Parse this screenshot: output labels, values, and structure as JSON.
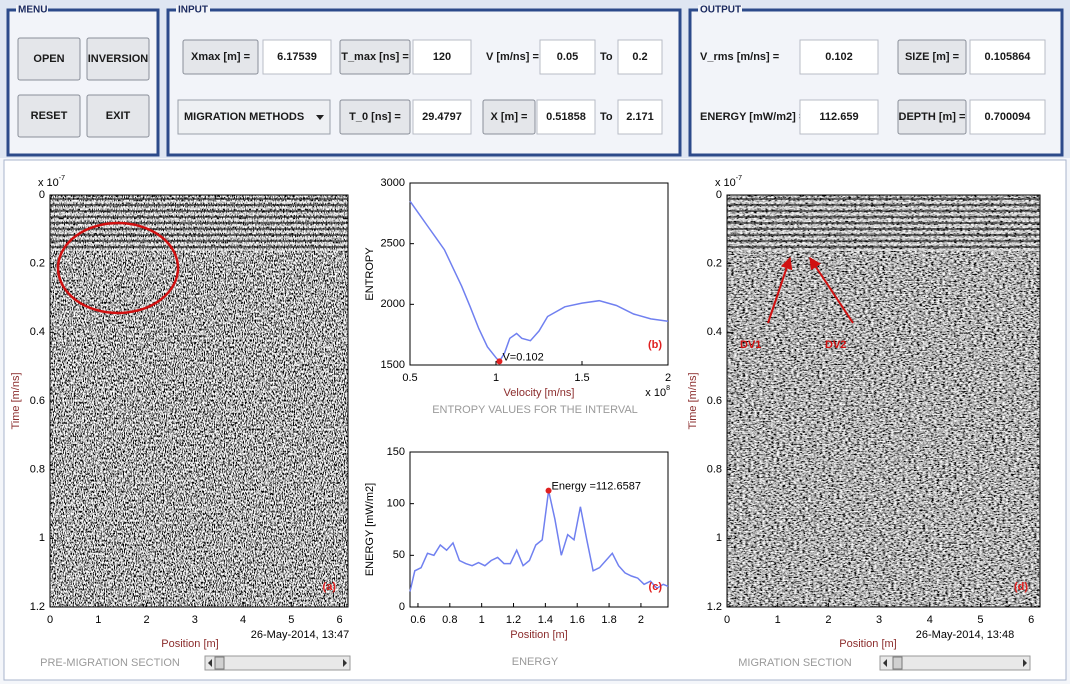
{
  "menu": {
    "title": "MENU",
    "buttons": [
      "OPEN",
      "INVERSION",
      "RESET",
      "EXIT"
    ]
  },
  "input": {
    "title": "INPUT",
    "xmax": {
      "label": "Xmax [m] =",
      "value": 6.17539
    },
    "t_max": {
      "label": "T_max [ns] =",
      "value": 120
    },
    "v": {
      "label": "V [m/ns] =",
      "from": 0.05,
      "to_label": "To",
      "to": 0.2
    },
    "migration_methods": "MIGRATION METHODS",
    "t_0": {
      "label": "T_0 [ns] =",
      "value": 29.4797
    },
    "x": {
      "label": "X [m] =",
      "from": 0.51858,
      "to_label": "To",
      "to": 2.171
    }
  },
  "output": {
    "title": "OUTPUT",
    "v_rms": {
      "label": "V_rms [m/ns] =",
      "value": 0.102
    },
    "size": {
      "label": "SIZE [m] =",
      "value": 0.105864
    },
    "energy": {
      "label": "ENERGY [mW/m2] =",
      "value": 112.659
    },
    "depth": {
      "label": "DEPTH [m] =",
      "value": 0.700094
    }
  },
  "plots": {
    "a": {
      "type": "radargram",
      "title": "PRE-MIGRATION SECTION",
      "panel_label": "(a)",
      "xlabel": "Position [m]",
      "ylabel": "Time [m/ns]",
      "timestamp": "26-May-2014, 13:47",
      "y_multiplier": {
        "base": "x 10",
        "exponent": "-7"
      },
      "xlim": [
        0,
        6.175
      ],
      "ylim": [
        0,
        1.2
      ],
      "y_reversed": true,
      "xticks": [
        0,
        1,
        2,
        3,
        4,
        5,
        6
      ],
      "yticks": [
        0,
        0.2,
        0.4,
        0.6,
        0.8,
        1,
        1.2
      ]
    },
    "b": {
      "type": "line",
      "title": "ENTROPY VALUES FOR THE INTERVAL",
      "panel_label": "(b)",
      "xlabel": "Velocity [m/ns]",
      "ylabel": "ENTROPY",
      "color": "#7080f0",
      "x_multiplier": {
        "base": "x 10",
        "exponent": "8"
      },
      "xlim": [
        0.5,
        2
      ],
      "ylim": [
        1500,
        3000
      ],
      "xticks": [
        0.5,
        1,
        1.5,
        2
      ],
      "yticks": [
        1500,
        2000,
        2500,
        3000
      ],
      "x": [
        0.5,
        0.55,
        0.6,
        0.65,
        0.7,
        0.75,
        0.8,
        0.85,
        0.9,
        0.95,
        1.0,
        1.02,
        1.05,
        1.08,
        1.12,
        1.15,
        1.2,
        1.25,
        1.3,
        1.4,
        1.5,
        1.6,
        1.7,
        1.8,
        1.9,
        2.0
      ],
      "values": [
        2850,
        2750,
        2650,
        2550,
        2450,
        2300,
        2150,
        1980,
        1800,
        1650,
        1560,
        1530,
        1600,
        1720,
        1760,
        1720,
        1700,
        1780,
        1900,
        1980,
        2010,
        2030,
        1990,
        1920,
        1880,
        1860
      ],
      "annotation": {
        "x": 1.02,
        "y": 1530,
        "label": "V=0.102"
      }
    },
    "c": {
      "type": "line",
      "title": "ENERGY",
      "panel_label": "(c)",
      "xlabel": "Position [m]",
      "ylabel": "ENERGY [mW/m2]",
      "color": "#7080f0",
      "xlim": [
        0.55,
        2.17
      ],
      "ylim": [
        0,
        150
      ],
      "xticks": [
        0.6,
        0.8,
        1,
        1.2,
        1.4,
        1.6,
        1.8,
        2
      ],
      "yticks": [
        0,
        50,
        100,
        150
      ],
      "x": [
        0.55,
        0.58,
        0.62,
        0.66,
        0.7,
        0.74,
        0.78,
        0.82,
        0.86,
        0.9,
        0.94,
        0.98,
        1.02,
        1.06,
        1.1,
        1.14,
        1.18,
        1.22,
        1.26,
        1.3,
        1.34,
        1.38,
        1.42,
        1.46,
        1.5,
        1.54,
        1.58,
        1.62,
        1.66,
        1.7,
        1.74,
        1.78,
        1.82,
        1.86,
        1.9,
        1.94,
        1.98,
        2.02,
        2.06,
        2.1,
        2.14,
        2.17
      ],
      "values": [
        15,
        35,
        38,
        52,
        50,
        60,
        55,
        62,
        45,
        42,
        40,
        43,
        40,
        45,
        48,
        42,
        42,
        55,
        40,
        45,
        60,
        65,
        112.6587,
        85,
        50,
        70,
        65,
        97,
        65,
        35,
        38,
        45,
        52,
        40,
        33,
        30,
        28,
        22,
        25,
        18,
        22,
        20
      ],
      "annotation": {
        "x": 1.42,
        "y": 112.6587,
        "label": "Energy =112.6587"
      }
    },
    "d": {
      "type": "radargram",
      "title": "MIGRATION SECTION",
      "panel_label": "(d)",
      "xlabel": "Position [m]",
      "ylabel": "Time [m/ns]",
      "timestamp": "26-May-2014, 13:48",
      "y_multiplier": {
        "base": "x 10",
        "exponent": "-7"
      },
      "xlim": [
        0,
        6.175
      ],
      "ylim": [
        0,
        1.2
      ],
      "y_reversed": true,
      "xticks": [
        0,
        1,
        2,
        3,
        4,
        5,
        6
      ],
      "yticks": [
        0,
        0.2,
        0.4,
        0.6,
        0.8,
        1,
        1.2
      ],
      "markers": [
        "DV1",
        "DV2"
      ]
    }
  }
}
